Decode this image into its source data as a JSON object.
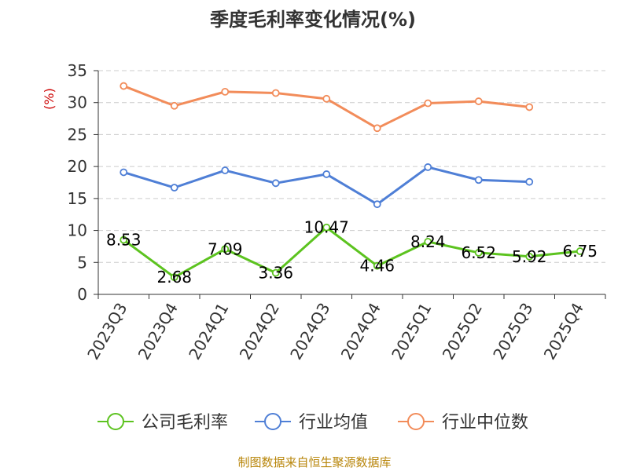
{
  "title": "季度毛利率变化情况(%)",
  "footer": "制图数据来自恒生聚源数据库",
  "chart_data": {
    "type": "line",
    "title": "季度毛利率变化情况(%)",
    "ylabel": "(%)",
    "xlabel": "",
    "ylim": [
      0,
      35
    ],
    "yticks": [
      0,
      5,
      10,
      15,
      20,
      25,
      30,
      35
    ],
    "grid": "horizontal-dashed",
    "legend": "bottom",
    "categories": [
      "2023Q3",
      "2023Q4",
      "2024Q1",
      "2024Q2",
      "2024Q3",
      "2024Q4",
      "2025Q1",
      "2025Q2",
      "2025Q3",
      "2025Q4"
    ],
    "series": [
      {
        "name": "公司毛利率",
        "color": "#5cc31f",
        "values": [
          8.53,
          2.68,
          7.09,
          3.36,
          10.47,
          4.46,
          8.24,
          6.52,
          5.92,
          6.75
        ],
        "labels": [
          "8.53",
          "2.68",
          "7.09",
          "3.36",
          "10.47",
          "4.46",
          "8.24",
          "6.52",
          "5.92",
          "6.75"
        ]
      },
      {
        "name": "行业均值",
        "color": "#4f7fd6",
        "values": [
          19.1,
          16.7,
          19.4,
          17.4,
          18.8,
          14.1,
          19.9,
          17.9,
          17.6,
          null
        ]
      },
      {
        "name": "行业中位数",
        "color": "#f28c5a",
        "values": [
          32.6,
          29.5,
          31.7,
          31.5,
          30.6,
          26.0,
          29.9,
          30.2,
          29.3,
          null
        ]
      }
    ]
  }
}
